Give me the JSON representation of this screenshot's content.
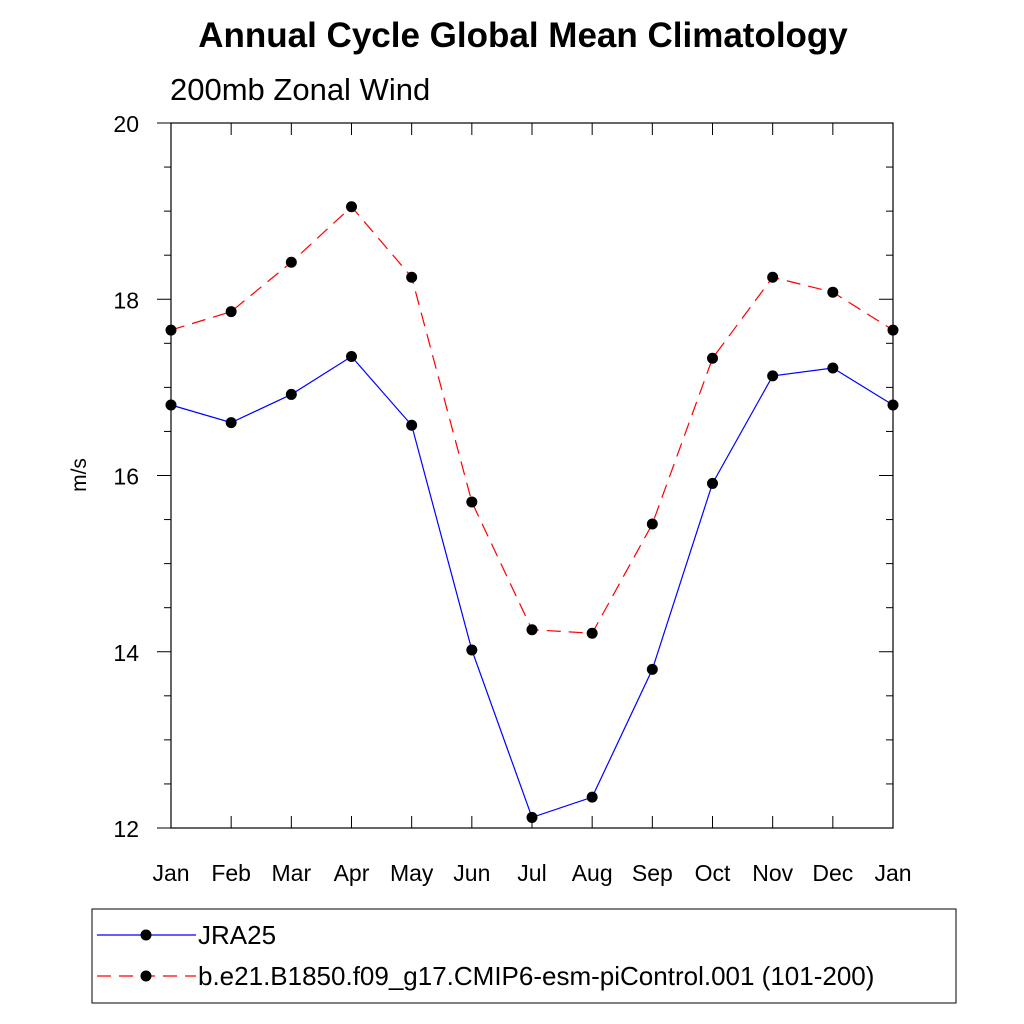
{
  "chart_data": {
    "type": "line",
    "title": "Annual Cycle Global Mean Climatology",
    "subtitle": "200mb Zonal Wind",
    "xlabel": "",
    "ylabel": "m/s",
    "categories": [
      "Jan",
      "Feb",
      "Mar",
      "Apr",
      "May",
      "Jun",
      "Jul",
      "Aug",
      "Sep",
      "Oct",
      "Nov",
      "Dec",
      "Jan"
    ],
    "ylim": [
      12,
      20
    ],
    "yticks": [
      12,
      14,
      16,
      18,
      20
    ],
    "grid": false,
    "legend_position": "bottom",
    "series": [
      {
        "name": "JRA25",
        "color": "#0000ff",
        "dash": "solid",
        "marker": "filled-circle",
        "values": [
          16.8,
          16.6,
          16.92,
          17.35,
          16.57,
          14.02,
          12.12,
          12.35,
          13.8,
          15.91,
          17.13,
          17.22,
          16.8
        ]
      },
      {
        "name": "b.e21.B1850.f09_g17.CMIP6-esm-piControl.001 (101-200)",
        "color": "#ff0000",
        "dash": "dashed",
        "marker": "filled-circle",
        "values": [
          17.65,
          17.86,
          18.42,
          19.05,
          18.25,
          15.7,
          14.25,
          14.21,
          15.45,
          17.33,
          18.25,
          18.08,
          17.65
        ]
      }
    ]
  }
}
